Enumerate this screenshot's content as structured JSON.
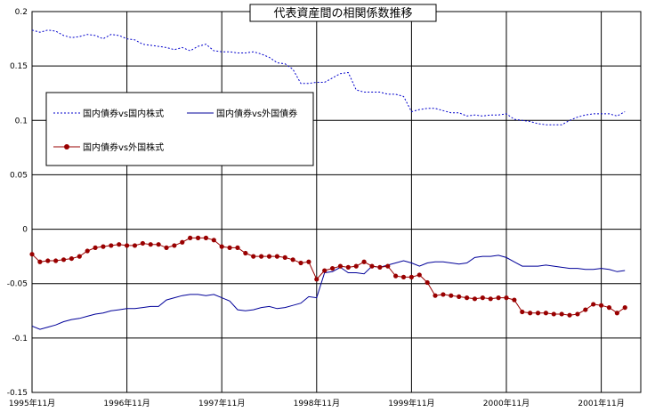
{
  "chart_data": {
    "type": "line",
    "title": "代表資産間の相関係数推移",
    "xlabel": "",
    "ylabel": "",
    "ylim": [
      -0.15,
      0.2
    ],
    "yticks": [
      0.2,
      0.15,
      0.1,
      0.05,
      0,
      -0.05,
      -0.1,
      -0.15
    ],
    "ytick_labels": [
      "0.2",
      "0.15",
      "0.1",
      "0.05",
      "0",
      "-0.05",
      "-0.1",
      "-0.15"
    ],
    "x_range": [
      "1995-11",
      "2002-04"
    ],
    "xticks": [
      "1995-11",
      "1996-11",
      "1997-11",
      "1998-11",
      "1999-11",
      "2000-11",
      "2001-11"
    ],
    "xtick_labels": [
      "1995年11月",
      "1996年11月",
      "1997年11月",
      "1998年11月",
      "1999年11月",
      "2000年11月",
      "2001年11月"
    ],
    "grid": true,
    "legend": "upper-left",
    "series": [
      {
        "name": "国内債券vs国内株式",
        "color": "#0000cc",
        "style": "dotted",
        "x": [
          "1995-11",
          "1995-12",
          "1996-01",
          "1996-02",
          "1996-03",
          "1996-04",
          "1996-05",
          "1996-06",
          "1996-07",
          "1996-08",
          "1996-09",
          "1996-10",
          "1996-11",
          "1996-12",
          "1997-01",
          "1997-02",
          "1997-03",
          "1997-04",
          "1997-05",
          "1997-06",
          "1997-07",
          "1997-08",
          "1997-09",
          "1997-10",
          "1997-11",
          "1997-12",
          "1998-01",
          "1998-02",
          "1998-03",
          "1998-04",
          "1998-05",
          "1998-06",
          "1998-07",
          "1998-08",
          "1998-09",
          "1998-10",
          "1998-11",
          "1998-12",
          "1999-01",
          "1999-02",
          "1999-03",
          "1999-04",
          "1999-05",
          "1999-06",
          "1999-07",
          "1999-08",
          "1999-09",
          "1999-10",
          "1999-11",
          "1999-12",
          "2000-01",
          "2000-02",
          "2000-03",
          "2000-04",
          "2000-05",
          "2000-06",
          "2000-07",
          "2000-08",
          "2000-09",
          "2000-10",
          "2000-11",
          "2000-12",
          "2001-01",
          "2001-02",
          "2001-03",
          "2001-04",
          "2001-05",
          "2001-06",
          "2001-07",
          "2001-08",
          "2001-09",
          "2001-10",
          "2001-11",
          "2001-12",
          "2002-01",
          "2002-02"
        ],
        "values": [
          0.183,
          0.181,
          0.183,
          0.182,
          0.178,
          0.176,
          0.177,
          0.179,
          0.178,
          0.175,
          0.179,
          0.178,
          0.175,
          0.174,
          0.17,
          0.169,
          0.168,
          0.167,
          0.165,
          0.167,
          0.164,
          0.168,
          0.17,
          0.164,
          0.163,
          0.163,
          0.162,
          0.162,
          0.163,
          0.161,
          0.158,
          0.153,
          0.152,
          0.147,
          0.134,
          0.134,
          0.135,
          0.135,
          0.139,
          0.143,
          0.144,
          0.128,
          0.126,
          0.126,
          0.126,
          0.124,
          0.124,
          0.122,
          0.108,
          0.11,
          0.111,
          0.111,
          0.109,
          0.107,
          0.107,
          0.104,
          0.105,
          0.104,
          0.105,
          0.105,
          0.106,
          0.101,
          0.1,
          0.099,
          0.097,
          0.096,
          0.096,
          0.096,
          0.1,
          0.103,
          0.105,
          0.106,
          0.106,
          0.106,
          0.104,
          0.108
        ]
      },
      {
        "name": "国内債券vs外国債券",
        "color": "#000099",
        "style": "solid",
        "x": [
          "1995-11",
          "1995-12",
          "1996-01",
          "1996-02",
          "1996-03",
          "1996-04",
          "1996-05",
          "1996-06",
          "1996-07",
          "1996-08",
          "1996-09",
          "1996-10",
          "1996-11",
          "1996-12",
          "1997-01",
          "1997-02",
          "1997-03",
          "1997-04",
          "1997-05",
          "1997-06",
          "1997-07",
          "1997-08",
          "1997-09",
          "1997-10",
          "1997-11",
          "1997-12",
          "1998-01",
          "1998-02",
          "1998-03",
          "1998-04",
          "1998-05",
          "1998-06",
          "1998-07",
          "1998-08",
          "1998-09",
          "1998-10",
          "1998-11",
          "1998-12",
          "1999-01",
          "1999-02",
          "1999-03",
          "1999-04",
          "1999-05",
          "1999-06",
          "1999-07",
          "1999-08",
          "1999-09",
          "1999-10",
          "1999-11",
          "1999-12",
          "2000-01",
          "2000-02",
          "2000-03",
          "2000-04",
          "2000-05",
          "2000-06",
          "2000-07",
          "2000-08",
          "2000-09",
          "2000-10",
          "2000-11",
          "2000-12",
          "2001-01",
          "2001-02",
          "2001-03",
          "2001-04",
          "2001-05",
          "2001-06",
          "2001-07",
          "2001-08",
          "2001-09",
          "2001-10",
          "2001-11",
          "2001-12",
          "2002-01",
          "2002-02"
        ],
        "values": [
          -0.089,
          -0.092,
          -0.09,
          -0.088,
          -0.085,
          -0.083,
          -0.082,
          -0.08,
          -0.078,
          -0.077,
          -0.075,
          -0.074,
          -0.073,
          -0.073,
          -0.072,
          -0.071,
          -0.071,
          -0.065,
          -0.063,
          -0.061,
          -0.06,
          -0.06,
          -0.061,
          -0.06,
          -0.063,
          -0.066,
          -0.074,
          -0.075,
          -0.074,
          -0.072,
          -0.071,
          -0.073,
          -0.072,
          -0.07,
          -0.068,
          -0.062,
          -0.063,
          -0.04,
          -0.039,
          -0.035,
          -0.04,
          -0.04,
          -0.041,
          -0.034,
          -0.035,
          -0.033,
          -0.031,
          -0.029,
          -0.031,
          -0.034,
          -0.031,
          -0.03,
          -0.03,
          -0.031,
          -0.032,
          -0.031,
          -0.026,
          -0.025,
          -0.025,
          -0.024,
          -0.026,
          -0.03,
          -0.034,
          -0.034,
          -0.034,
          -0.033,
          -0.034,
          -0.035,
          -0.036,
          -0.036,
          -0.037,
          -0.037,
          -0.036,
          -0.037,
          -0.039,
          -0.038
        ]
      },
      {
        "name": "国内債券vs外国株式",
        "color": "#990000",
        "style": "solid-marker",
        "x": [
          "1995-11",
          "1995-12",
          "1996-01",
          "1996-02",
          "1996-03",
          "1996-04",
          "1996-05",
          "1996-06",
          "1996-07",
          "1996-08",
          "1996-09",
          "1996-10",
          "1996-11",
          "1996-12",
          "1997-01",
          "1997-02",
          "1997-03",
          "1997-04",
          "1997-05",
          "1997-06",
          "1997-07",
          "1997-08",
          "1997-09",
          "1997-10",
          "1997-11",
          "1997-12",
          "1998-01",
          "1998-02",
          "1998-03",
          "1998-04",
          "1998-05",
          "1998-06",
          "1998-07",
          "1998-08",
          "1998-09",
          "1998-10",
          "1998-11",
          "1998-12",
          "1999-01",
          "1999-02",
          "1999-03",
          "1999-04",
          "1999-05",
          "1999-06",
          "1999-07",
          "1999-08",
          "1999-09",
          "1999-10",
          "1999-11",
          "1999-12",
          "2000-01",
          "2000-02",
          "2000-03",
          "2000-04",
          "2000-05",
          "2000-06",
          "2000-07",
          "2000-08",
          "2000-09",
          "2000-10",
          "2000-11",
          "2000-12",
          "2001-01",
          "2001-02",
          "2001-03",
          "2001-04",
          "2001-05",
          "2001-06",
          "2001-07",
          "2001-08",
          "2001-09",
          "2001-10",
          "2001-11",
          "2001-12",
          "2002-01",
          "2002-02"
        ],
        "values": [
          -0.023,
          -0.03,
          -0.029,
          -0.029,
          -0.028,
          -0.027,
          -0.025,
          -0.02,
          -0.017,
          -0.016,
          -0.015,
          -0.014,
          -0.015,
          -0.015,
          -0.013,
          -0.014,
          -0.014,
          -0.017,
          -0.015,
          -0.012,
          -0.008,
          -0.008,
          -0.008,
          -0.01,
          -0.016,
          -0.017,
          -0.017,
          -0.022,
          -0.025,
          -0.025,
          -0.025,
          -0.025,
          -0.026,
          -0.028,
          -0.031,
          -0.03,
          -0.046,
          -0.038,
          -0.036,
          -0.034,
          -0.035,
          -0.034,
          -0.03,
          -0.034,
          -0.035,
          -0.034,
          -0.043,
          -0.044,
          -0.044,
          -0.042,
          -0.049,
          -0.061,
          -0.06,
          -0.061,
          -0.062,
          -0.063,
          -0.064,
          -0.063,
          -0.064,
          -0.063,
          -0.063,
          -0.065,
          -0.076,
          -0.077,
          -0.077,
          -0.077,
          -0.078,
          -0.078,
          -0.079,
          -0.078,
          -0.074,
          -0.069,
          -0.07,
          -0.072,
          -0.077,
          -0.072
        ]
      }
    ]
  }
}
